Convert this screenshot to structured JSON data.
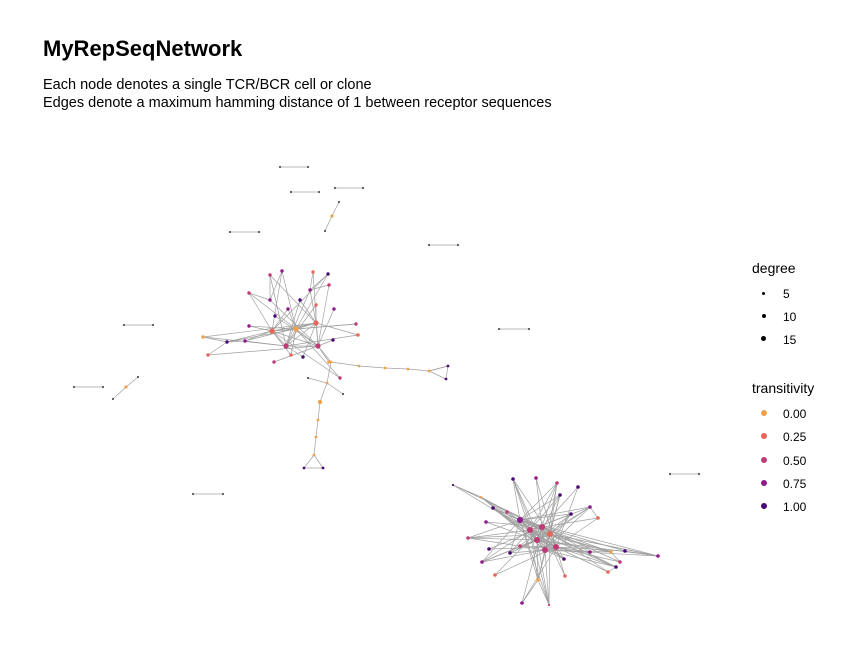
{
  "title": "MyRepSeqNetwork",
  "subtitle": [
    "Each node denotes a single TCR/BCR cell or clone",
    "Edges denote a maximum hamming distance of 1 between receptor sequences"
  ],
  "legend": {
    "degree": {
      "title": "degree",
      "items": [
        {
          "label": "5",
          "value": 5
        },
        {
          "label": "10",
          "value": 10
        },
        {
          "label": "15",
          "value": 15
        }
      ]
    },
    "transitivity": {
      "title": "transitivity",
      "items": [
        {
          "label": "0.00",
          "value": 0.0,
          "color": "#f0a04b"
        },
        {
          "label": "0.25",
          "value": 0.25,
          "color": "#e8655a"
        },
        {
          "label": "0.50",
          "value": 0.5,
          "color": "#c03a76"
        },
        {
          "label": "0.75",
          "value": 0.75,
          "color": "#8f1a8a"
        },
        {
          "label": "1.00",
          "value": 1.0,
          "color": "#4b0a72"
        }
      ]
    }
  },
  "colors": {
    "edge": "#a0a0a0",
    "isolated": "#555555"
  }
}
